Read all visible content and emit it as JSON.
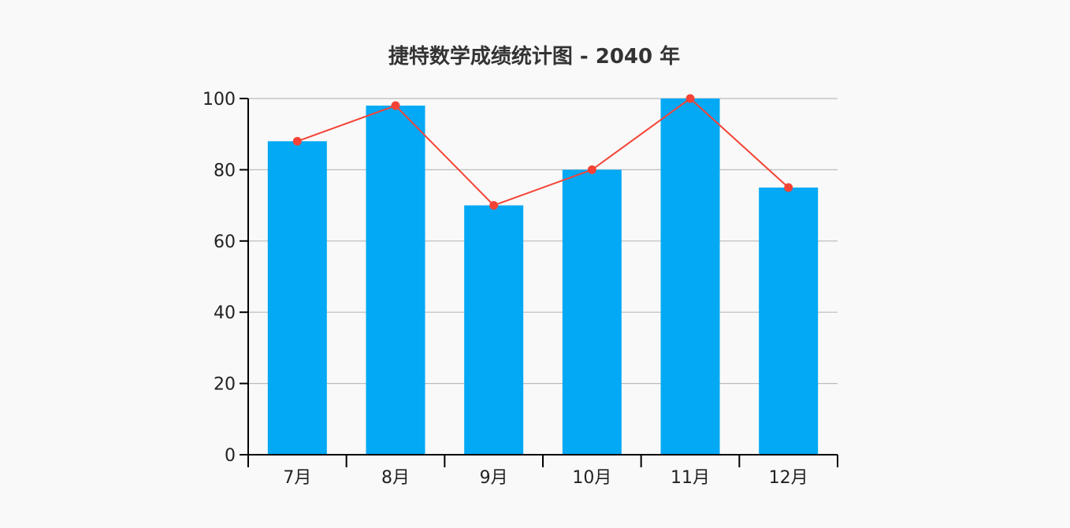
{
  "chart_data": {
    "type": "bar+line",
    "title": "捷特数学成绩统计图 - 2040 年",
    "categories": [
      "7月",
      "8月",
      "9月",
      "10月",
      "11月",
      "12月"
    ],
    "series": [
      {
        "type": "bar",
        "values": [
          88,
          98,
          70,
          80,
          100,
          75
        ],
        "color": "#03a9f4"
      },
      {
        "type": "line",
        "values": [
          88,
          98,
          70,
          80,
          100,
          75
        ],
        "color": "#f44336"
      }
    ],
    "ylim": [
      0,
      100
    ],
    "yticks": [
      0,
      20,
      40,
      60,
      80,
      100
    ],
    "grid": true,
    "xlabel": "",
    "ylabel": ""
  }
}
